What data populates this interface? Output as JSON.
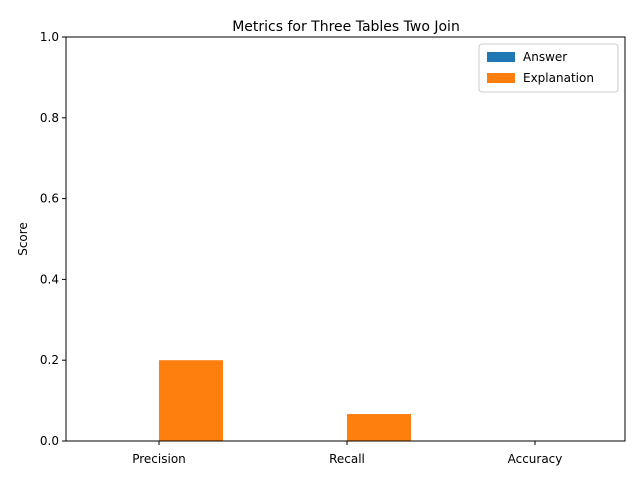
{
  "chart_data": {
    "type": "bar",
    "title": "Metrics for Three Tables Two Join",
    "xlabel": "",
    "ylabel": "Score",
    "categories": [
      "Precision",
      "Recall",
      "Accuracy"
    ],
    "series": [
      {
        "name": "Answer",
        "values": [
          0.0,
          0.0,
          0.0
        ],
        "color": "#1f77b4"
      },
      {
        "name": "Explanation",
        "values": [
          0.2,
          0.0667,
          0.0
        ],
        "color": "#ff7f0e"
      }
    ],
    "ylim": [
      0,
      1.0
    ],
    "yticks": [
      "0.0",
      "0.2",
      "0.4",
      "0.6",
      "0.8",
      "1.0"
    ],
    "grid": false,
    "legend_position": "top-right"
  }
}
